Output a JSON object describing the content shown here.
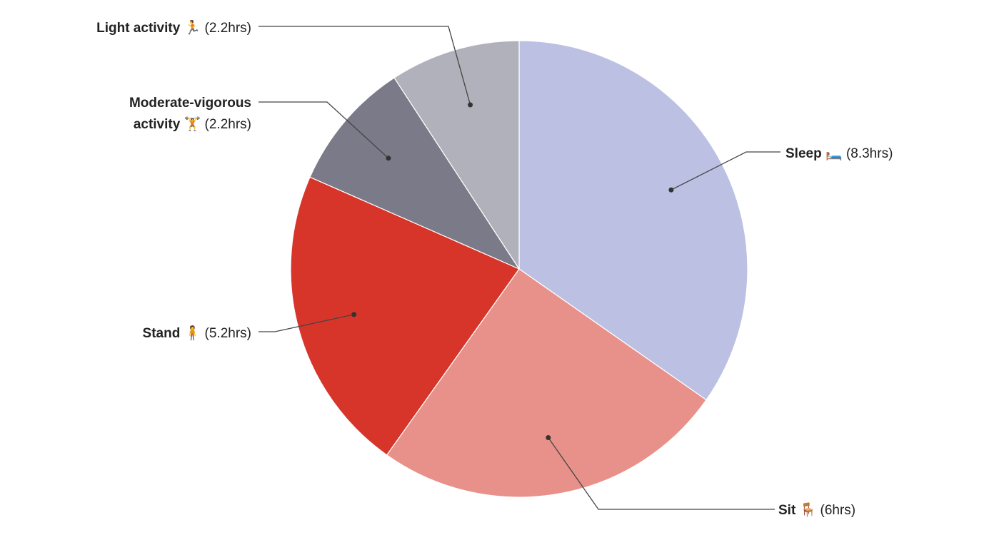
{
  "chart_data": {
    "type": "pie",
    "categories": [
      "Sleep",
      "Sit",
      "Stand",
      "Moderate-vigorous activity",
      "Light activity"
    ],
    "icons": [
      "🛏️",
      "🪑",
      "🧍",
      "🏋️",
      "🏃"
    ],
    "values": [
      8.3,
      6,
      5.2,
      2.2,
      2.2
    ],
    "value_labels": [
      "(8.3hrs)",
      "(6hrs)",
      "(5.2hrs)",
      "(2.2hrs)",
      "(2.2hrs)"
    ],
    "colors": [
      "#bcc0e2",
      "#e8918a",
      "#d7352a",
      "#7a7a88",
      "#b1b1bb"
    ]
  }
}
